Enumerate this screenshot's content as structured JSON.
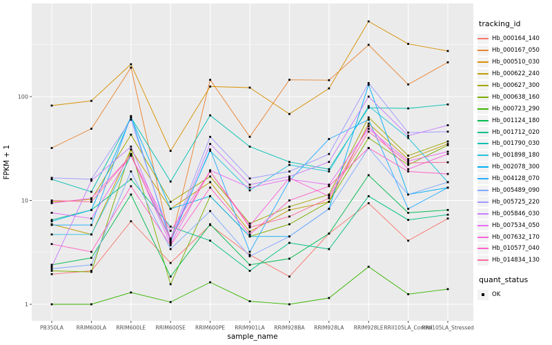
{
  "chart_data": {
    "type": "line",
    "title": "",
    "xlabel": "sample_name",
    "ylabel": "FPKM + 1",
    "y_scale": "log10",
    "y_ticks": [
      "1",
      "10",
      "100"
    ],
    "y_tick_values": [
      1,
      10,
      100
    ],
    "y_minor_tick_values": [
      3.162,
      31.62,
      316.2
    ],
    "ylim": [
      0.69,
      740
    ],
    "grid": true,
    "panel_bg": "#EBEBEB",
    "gridline_color": "#FFFFFF",
    "tick_label_color": "#4D4D4D",
    "axis_title_color": "#000000",
    "marker_color": "#000000",
    "legend_position": "right",
    "categories": [
      "PB350LA",
      "RRIM600LA",
      "RRIM600LE",
      "RRIM600SE",
      "RRIM600PE",
      "RRIM901LA",
      "RRIM928BA",
      "RRIM928LA",
      "RRIM928LE",
      "RRII105LA_Control",
      "RRII105LA_Stressed"
    ],
    "legend": {
      "title": "tracking_id"
    },
    "quant_legend": {
      "title": "quant_status",
      "items": [
        {
          "label": "OK"
        }
      ]
    },
    "series": [
      {
        "name": "Hb_000164_140",
        "color": "#F8766D",
        "values": [
          1.95,
          2.1,
          6.3,
          2.5,
          5.8,
          3.0,
          1.85,
          4.8,
          9.4,
          4.1,
          6.7
        ]
      },
      {
        "name": "Hb_000167_050",
        "color": "#EA8331",
        "values": [
          32,
          49,
          190,
          3.9,
          145,
          41,
          145,
          144,
          315,
          131,
          214
        ]
      },
      {
        "name": "Hb_000510_030",
        "color": "#D89000",
        "values": [
          82,
          91,
          205,
          30,
          125,
          122,
          68,
          120,
          530,
          322,
          275
        ]
      },
      {
        "name": "Hb_000622_240",
        "color": "#C09B00",
        "values": [
          5.9,
          4.7,
          31,
          8.3,
          15,
          5.0,
          8.1,
          9.7,
          55,
          25,
          35
        ]
      },
      {
        "name": "Hb_000627_300",
        "color": "#A3A500",
        "values": [
          9.7,
          10.2,
          43,
          9.7,
          17,
          6.0,
          8.7,
          11.4,
          63,
          27,
          37
        ]
      },
      {
        "name": "Hb_000638_160",
        "color": "#7CAE00",
        "values": [
          2.1,
          2.05,
          31,
          1.56,
          11,
          4.5,
          5.9,
          9.7,
          40,
          22,
          34
        ]
      },
      {
        "name": "Hb_000723_290",
        "color": "#39B600",
        "values": [
          1.0,
          1.0,
          1.3,
          1.05,
          1.63,
          1.07,
          1.0,
          1.15,
          2.3,
          1.25,
          1.4
        ]
      },
      {
        "name": "Hb_001124_180",
        "color": "#00BB4E",
        "values": [
          2.4,
          2.8,
          11.4,
          1.85,
          5.9,
          2.4,
          2.75,
          4.8,
          17.5,
          7.6,
          8.1
        ]
      },
      {
        "name": "Hb_001712_020",
        "color": "#00C087",
        "values": [
          6.5,
          8.1,
          16,
          5.6,
          4.1,
          2.1,
          3.9,
          3.4,
          11,
          6.5,
          7.3
        ]
      },
      {
        "name": "Hb_001790_030",
        "color": "#00C0B4",
        "values": [
          16,
          12.1,
          63,
          15.2,
          66,
          33,
          23.5,
          20,
          78,
          77,
          84
        ]
      },
      {
        "name": "Hb_001898_180",
        "color": "#22C3DC",
        "values": [
          4.7,
          4.7,
          27,
          4.2,
          30,
          12.5,
          22,
          19,
          81,
          40,
          15
        ]
      },
      {
        "name": "Hb_002078_300",
        "color": "#00B0F6",
        "values": [
          6.3,
          8.1,
          63,
          8.3,
          11,
          4.5,
          4.5,
          8.3,
          130,
          11.4,
          13.3
        ]
      },
      {
        "name": "Hb_004128_070",
        "color": "#29AEFF",
        "values": [
          5.8,
          5.8,
          65,
          4.0,
          31,
          3.2,
          15.5,
          39,
          60,
          8.3,
          13.3
        ]
      },
      {
        "name": "Hb_005489_090",
        "color": "#7FA9FF",
        "values": [
          2.2,
          2.4,
          19,
          3.4,
          7.9,
          2.9,
          4.5,
          8.3,
          32,
          11.4,
          15
        ]
      },
      {
        "name": "Hb_005725_220",
        "color": "#9F99FF",
        "values": [
          16.5,
          16,
          60,
          4.3,
          41,
          16.3,
          19,
          28,
          135,
          45,
          46
        ]
      },
      {
        "name": "Hb_005846_030",
        "color": "#C77CFF",
        "values": [
          2.3,
          15.5,
          33,
          4.1,
          35,
          14.2,
          17,
          23.5,
          100,
          42,
          53
        ]
      },
      {
        "name": "Hb_007534_050",
        "color": "#E76BF3",
        "values": [
          7.6,
          6.7,
          28,
          3.8,
          19.5,
          13.3,
          16,
          14.2,
          49,
          24,
          29.5
        ]
      },
      {
        "name": "Hb_007632_170",
        "color": "#FA62DB",
        "values": [
          9.4,
          10.5,
          27,
          5.1,
          19,
          5.7,
          16.5,
          11,
          52,
          20,
          28
        ]
      },
      {
        "name": "Hb_010577_040",
        "color": "#FF61C7",
        "values": [
          3.8,
          3.2,
          13.7,
          3.7,
          13.3,
          4.7,
          10,
          13.7,
          32,
          19,
          18
        ]
      },
      {
        "name": "Hb_014834_130",
        "color": "#FF689E",
        "values": [
          10,
          9.7,
          27,
          4.3,
          19,
          5.5,
          7.0,
          10.5,
          46,
          23,
          23.3
        ]
      }
    ]
  }
}
